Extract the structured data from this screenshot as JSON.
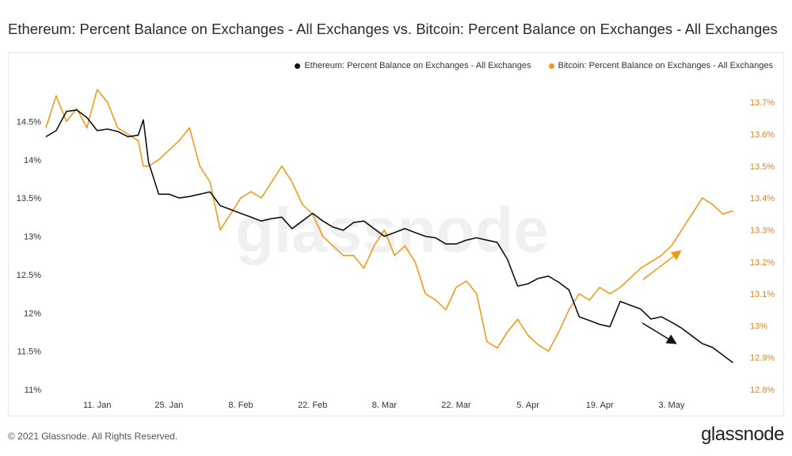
{
  "title": "Ethereum: Percent Balance on Exchanges - All Exchanges vs. Bitcoin: Percent Balance on Exchanges - All Exchanges",
  "footer": "© 2021 Glassnode. All Rights Reserved.",
  "brand": "glassnode",
  "watermark": "glassnode",
  "chart_data": {
    "type": "line",
    "title": "Ethereum: Percent Balance on Exchanges - All Exchanges vs. Bitcoin: Percent Balance on Exchanges - All Exchanges",
    "x_range": [
      "2021-01-01",
      "2021-05-16"
    ],
    "x_ticks": [
      {
        "date": "2021-01-11",
        "label": "11. Jan"
      },
      {
        "date": "2021-01-25",
        "label": "25. Jan"
      },
      {
        "date": "2021-02-08",
        "label": "8. Feb"
      },
      {
        "date": "2021-02-22",
        "label": "22. Feb"
      },
      {
        "date": "2021-03-08",
        "label": "8. Mar"
      },
      {
        "date": "2021-03-22",
        "label": "22. Mar"
      },
      {
        "date": "2021-04-05",
        "label": "5. Apr"
      },
      {
        "date": "2021-04-19",
        "label": "19. Apr"
      },
      {
        "date": "2021-05-03",
        "label": "3. May"
      }
    ],
    "y_left": {
      "ylim": [
        11,
        15
      ],
      "ticks": [
        11,
        11.5,
        12,
        12.5,
        13,
        13.5,
        14,
        14.5
      ],
      "tick_labels": [
        "11%",
        "11.5%",
        "12%",
        "12.5%",
        "13%",
        "13.5%",
        "14%",
        "14.5%"
      ]
    },
    "y_right": {
      "ylim": [
        12.8,
        13.76
      ],
      "ticks": [
        12.8,
        12.9,
        13.0,
        13.1,
        13.2,
        13.3,
        13.4,
        13.5,
        13.6,
        13.7
      ],
      "tick_labels": [
        "12.8%",
        "12.9%",
        "13%",
        "13.1%",
        "13.2%",
        "13.3%",
        "13.4%",
        "13.5%",
        "13.6%",
        "13.7%"
      ]
    },
    "legend_placement": "top-right",
    "grid": false,
    "series": [
      {
        "name": "Ethereum: Percent Balance on Exchanges - All Exchanges",
        "color": "#111111",
        "axis": "left",
        "x": [
          "2021-01-01",
          "2021-01-03",
          "2021-01-05",
          "2021-01-07",
          "2021-01-09",
          "2021-01-11",
          "2021-01-13",
          "2021-01-15",
          "2021-01-17",
          "2021-01-19",
          "2021-01-20",
          "2021-01-21",
          "2021-01-23",
          "2021-01-25",
          "2021-01-27",
          "2021-01-29",
          "2021-01-31",
          "2021-02-02",
          "2021-02-04",
          "2021-02-06",
          "2021-02-08",
          "2021-02-10",
          "2021-02-12",
          "2021-02-14",
          "2021-02-16",
          "2021-02-18",
          "2021-02-20",
          "2021-02-22",
          "2021-02-24",
          "2021-02-26",
          "2021-02-28",
          "2021-03-02",
          "2021-03-04",
          "2021-03-06",
          "2021-03-08",
          "2021-03-10",
          "2021-03-12",
          "2021-03-14",
          "2021-03-16",
          "2021-03-18",
          "2021-03-20",
          "2021-03-22",
          "2021-03-24",
          "2021-03-26",
          "2021-03-28",
          "2021-03-30",
          "2021-04-01",
          "2021-04-03",
          "2021-04-05",
          "2021-04-07",
          "2021-04-09",
          "2021-04-11",
          "2021-04-13",
          "2021-04-15",
          "2021-04-17",
          "2021-04-19",
          "2021-04-21",
          "2021-04-23",
          "2021-04-25",
          "2021-04-27",
          "2021-04-29",
          "2021-05-01",
          "2021-05-03",
          "2021-05-05",
          "2021-05-07",
          "2021-05-09",
          "2021-05-11",
          "2021-05-13",
          "2021-05-15"
        ],
        "values": [
          14.3,
          14.38,
          14.63,
          14.65,
          14.55,
          14.38,
          14.4,
          14.37,
          14.3,
          14.32,
          14.52,
          13.97,
          13.55,
          13.55,
          13.5,
          13.52,
          13.55,
          13.58,
          13.4,
          13.35,
          13.3,
          13.25,
          13.2,
          13.23,
          13.25,
          13.1,
          13.2,
          13.3,
          13.2,
          13.12,
          13.08,
          13.18,
          13.2,
          13.1,
          13.0,
          13.05,
          13.1,
          13.05,
          13.0,
          12.98,
          12.9,
          12.9,
          12.95,
          12.98,
          12.95,
          12.92,
          12.7,
          12.35,
          12.38,
          12.45,
          12.48,
          12.4,
          12.3,
          11.95,
          11.9,
          11.85,
          11.82,
          12.15,
          12.1,
          12.05,
          11.92,
          11.95,
          11.88,
          11.8,
          11.7,
          11.6,
          11.55,
          11.45,
          11.35
        ]
      },
      {
        "name": "Bitcoin: Percent Balance on Exchanges - All Exchanges",
        "color": "#f09a1a",
        "axis": "right",
        "x": [
          "2021-01-01",
          "2021-01-03",
          "2021-01-05",
          "2021-01-07",
          "2021-01-09",
          "2021-01-11",
          "2021-01-13",
          "2021-01-15",
          "2021-01-17",
          "2021-01-19",
          "2021-01-20",
          "2021-01-21",
          "2021-01-23",
          "2021-01-25",
          "2021-01-27",
          "2021-01-29",
          "2021-01-31",
          "2021-02-02",
          "2021-02-04",
          "2021-02-06",
          "2021-02-08",
          "2021-02-10",
          "2021-02-12",
          "2021-02-14",
          "2021-02-16",
          "2021-02-18",
          "2021-02-20",
          "2021-02-22",
          "2021-02-24",
          "2021-02-26",
          "2021-02-28",
          "2021-03-02",
          "2021-03-04",
          "2021-03-06",
          "2021-03-08",
          "2021-03-10",
          "2021-03-12",
          "2021-03-14",
          "2021-03-16",
          "2021-03-18",
          "2021-03-20",
          "2021-03-22",
          "2021-03-24",
          "2021-03-26",
          "2021-03-28",
          "2021-03-30",
          "2021-04-01",
          "2021-04-03",
          "2021-04-05",
          "2021-04-07",
          "2021-04-09",
          "2021-04-11",
          "2021-04-13",
          "2021-04-15",
          "2021-04-17",
          "2021-04-19",
          "2021-04-21",
          "2021-04-23",
          "2021-04-25",
          "2021-04-27",
          "2021-04-29",
          "2021-05-01",
          "2021-05-03",
          "2021-05-05",
          "2021-05-07",
          "2021-05-09",
          "2021-05-11",
          "2021-05-13",
          "2021-05-15"
        ],
        "values": [
          13.62,
          13.72,
          13.64,
          13.68,
          13.62,
          13.74,
          13.7,
          13.62,
          13.6,
          13.58,
          13.5,
          13.5,
          13.52,
          13.55,
          13.58,
          13.62,
          13.5,
          13.45,
          13.3,
          13.35,
          13.4,
          13.42,
          13.4,
          13.45,
          13.5,
          13.45,
          13.38,
          13.35,
          13.28,
          13.25,
          13.22,
          13.22,
          13.18,
          13.25,
          13.3,
          13.22,
          13.25,
          13.2,
          13.1,
          13.08,
          13.05,
          13.12,
          13.14,
          13.1,
          12.95,
          12.93,
          12.98,
          13.02,
          12.97,
          12.94,
          12.92,
          12.98,
          13.05,
          13.1,
          13.08,
          13.12,
          13.1,
          13.12,
          13.15,
          13.18,
          13.2,
          13.22,
          13.25,
          13.3,
          13.35,
          13.4,
          13.38,
          13.35,
          13.36
        ]
      }
    ],
    "annotations": [
      {
        "type": "arrow",
        "color": "#f09a1a",
        "direction": "up"
      },
      {
        "type": "arrow",
        "color": "#111111",
        "direction": "down"
      }
    ]
  }
}
